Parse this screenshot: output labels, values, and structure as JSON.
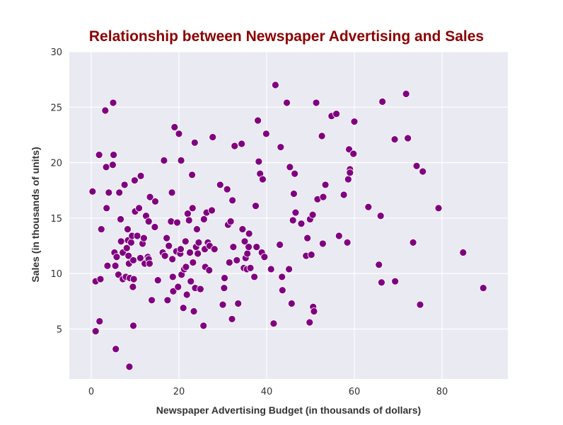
{
  "chart_data": {
    "type": "scatter",
    "title": "Relationship between Newspaper Advertising and Sales",
    "xlabel": "Newspaper Advertising Budget (in thousands of dollars)",
    "ylabel": "Sales (in thousands of units)",
    "xlim": [
      -5,
      95
    ],
    "ylim": [
      0.5,
      30
    ],
    "xticks": [
      0,
      20,
      40,
      60,
      80
    ],
    "yticks": [
      5,
      10,
      15,
      20,
      25,
      30
    ],
    "grid": true,
    "background": "#eaeaf2",
    "grid_color": "#ffffff",
    "point_color": "#800080",
    "title_color": "#8b0000",
    "points": [
      [
        0.3,
        17.4
      ],
      [
        1,
        9.3
      ],
      [
        1,
        4.8
      ],
      [
        1.8,
        20.7
      ],
      [
        1.9,
        5.7
      ],
      [
        2.1,
        9.5
      ],
      [
        2.3,
        14.0
      ],
      [
        3.2,
        24.7
      ],
      [
        3.4,
        19.6
      ],
      [
        3.5,
        15.9
      ],
      [
        3.7,
        10.7
      ],
      [
        4.0,
        17.3
      ],
      [
        4.9,
        19.8
      ],
      [
        5.0,
        25.4
      ],
      [
        5.1,
        20.7
      ],
      [
        5.3,
        11.9
      ],
      [
        5.5,
        10.7
      ],
      [
        5.6,
        3.2
      ],
      [
        5.8,
        11.5
      ],
      [
        6.2,
        9.9
      ],
      [
        6.4,
        17.3
      ],
      [
        6.7,
        14.9
      ],
      [
        6.8,
        12.9
      ],
      [
        7.2,
        11.9
      ],
      [
        7.2,
        9.5
      ],
      [
        7.6,
        18.0
      ],
      [
        7.9,
        9.7
      ],
      [
        8.1,
        12.3
      ],
      [
        8.3,
        14.0
      ],
      [
        8.4,
        13.0
      ],
      [
        8.5,
        11.6
      ],
      [
        8.6,
        10.9
      ],
      [
        8.7,
        1.6
      ],
      [
        8.8,
        9.6
      ],
      [
        9.1,
        12.8
      ],
      [
        9.3,
        13.4
      ],
      [
        9.5,
        8.8
      ],
      [
        9.6,
        11.2
      ],
      [
        9.6,
        5.3
      ],
      [
        9.7,
        9.5
      ],
      [
        9.9,
        18.4
      ],
      [
        10.0,
        15.6
      ],
      [
        10.5,
        13.4
      ],
      [
        10.9,
        15.9
      ],
      [
        11.2,
        11.4
      ],
      [
        11.3,
        18.8
      ],
      [
        11.7,
        12.7
      ],
      [
        12.0,
        13.2
      ],
      [
        12.2,
        10.9
      ],
      [
        12.5,
        15.2
      ],
      [
        12.9,
        11.5
      ],
      [
        13.1,
        14.7
      ],
      [
        13.1,
        11.3
      ],
      [
        13.3,
        10.9
      ],
      [
        13.4,
        16.9
      ],
      [
        13.8,
        7.6
      ],
      [
        14.5,
        14.2
      ],
      [
        14.6,
        16.5
      ],
      [
        15.2,
        9.4
      ],
      [
        16.3,
        11.9
      ],
      [
        16.6,
        20.2
      ],
      [
        16.8,
        11.6
      ],
      [
        17.2,
        13.2
      ],
      [
        17.4,
        7.6
      ],
      [
        17.7,
        12.5
      ],
      [
        18.2,
        14.7
      ],
      [
        18.4,
        17.3
      ],
      [
        18.5,
        11.3
      ],
      [
        18.6,
        9.7
      ],
      [
        18.7,
        8.4
      ],
      [
        19.0,
        23.2
      ],
      [
        19.4,
        12.0
      ],
      [
        19.6,
        14.6
      ],
      [
        19.8,
        8.8
      ],
      [
        20.0,
        22.6
      ],
      [
        20.3,
        11.8
      ],
      [
        20.4,
        12.2
      ],
      [
        20.5,
        20.2
      ],
      [
        20.6,
        9.9
      ],
      [
        21.0,
        6.9
      ],
      [
        21.2,
        10.4
      ],
      [
        21.5,
        12.9
      ],
      [
        21.6,
        10.6
      ],
      [
        21.8,
        8.1
      ],
      [
        22.0,
        15.4
      ],
      [
        22.3,
        14.8
      ],
      [
        22.5,
        11.9
      ],
      [
        22.7,
        9.3
      ],
      [
        23.0,
        18.9
      ],
      [
        23.1,
        15.9
      ],
      [
        23.2,
        11.0
      ],
      [
        23.4,
        6.6
      ],
      [
        23.6,
        21.8
      ],
      [
        23.7,
        8.7
      ],
      [
        23.9,
        12.4
      ],
      [
        24.1,
        14.0
      ],
      [
        24.3,
        11.8
      ],
      [
        24.5,
        12.8
      ],
      [
        24.9,
        8.6
      ],
      [
        25.6,
        5.3
      ],
      [
        25.7,
        14.9
      ],
      [
        25.9,
        12.2
      ],
      [
        26.0,
        10.6
      ],
      [
        26.3,
        15.5
      ],
      [
        26.6,
        12.8
      ],
      [
        26.9,
        10.3
      ],
      [
        27.0,
        12.5
      ],
      [
        27.5,
        15.7
      ],
      [
        27.7,
        22.3
      ],
      [
        28.1,
        12.2
      ],
      [
        29.4,
        18.0
      ],
      [
        30.0,
        7.2
      ],
      [
        30.3,
        8.7
      ],
      [
        30.4,
        9.6
      ],
      [
        31.0,
        17.6
      ],
      [
        31.2,
        14.4
      ],
      [
        31.5,
        11.0
      ],
      [
        31.8,
        14.7
      ],
      [
        32.1,
        5.9
      ],
      [
        32.2,
        16.6
      ],
      [
        32.4,
        12.4
      ],
      [
        32.7,
        21.5
      ],
      [
        33.2,
        11.2
      ],
      [
        33.5,
        7.3
      ],
      [
        34.3,
        21.7
      ],
      [
        34.5,
        14.0
      ],
      [
        34.8,
        10.5
      ],
      [
        35.0,
        12.9
      ],
      [
        35.2,
        11.4
      ],
      [
        35.5,
        10.4
      ],
      [
        35.6,
        11.8
      ],
      [
        35.9,
        12.4
      ],
      [
        36.0,
        13.6
      ],
      [
        36.3,
        10.5
      ],
      [
        37.2,
        9.7
      ],
      [
        37.5,
        16.1
      ],
      [
        37.7,
        12.4
      ],
      [
        38.0,
        23.8
      ],
      [
        38.2,
        20.1
      ],
      [
        38.5,
        19.0
      ],
      [
        38.9,
        11.9
      ],
      [
        39.1,
        18.5
      ],
      [
        39.5,
        11.5
      ],
      [
        39.9,
        22.6
      ],
      [
        41.0,
        10.4
      ],
      [
        41.6,
        5.5
      ],
      [
        42.0,
        27.0
      ],
      [
        43.0,
        12.6
      ],
      [
        43.2,
        21.4
      ],
      [
        43.5,
        9.7
      ],
      [
        43.6,
        8.5
      ],
      [
        44.6,
        25.4
      ],
      [
        45.1,
        10.4
      ],
      [
        45.3,
        19.6
      ],
      [
        45.7,
        7.3
      ],
      [
        46.0,
        14.8
      ],
      [
        46.2,
        17.2
      ],
      [
        46.4,
        19.0
      ],
      [
        46.6,
        15.5
      ],
      [
        47.9,
        14.5
      ],
      [
        49.0,
        11.6
      ],
      [
        49.3,
        13.2
      ],
      [
        49.8,
        5.6
      ],
      [
        49.9,
        14.9
      ],
      [
        50.2,
        11.7
      ],
      [
        50.5,
        15.3
      ],
      [
        50.6,
        7.0
      ],
      [
        50.8,
        6.6
      ],
      [
        51.3,
        25.4
      ],
      [
        51.6,
        16.7
      ],
      [
        52.6,
        22.4
      ],
      [
        52.8,
        12.7
      ],
      [
        52.9,
        16.9
      ],
      [
        53.4,
        18.0
      ],
      [
        54.8,
        24.2
      ],
      [
        55.9,
        24.4
      ],
      [
        56.5,
        13.4
      ],
      [
        57.6,
        17.1
      ],
      [
        58.4,
        12.8
      ],
      [
        58.6,
        18.5
      ],
      [
        58.8,
        21.2
      ],
      [
        59.0,
        19.4
      ],
      [
        59.0,
        19.1
      ],
      [
        59.8,
        20.8
      ],
      [
        60.0,
        23.7
      ],
      [
        63.2,
        16.0
      ],
      [
        65.6,
        10.8
      ],
      [
        66.0,
        15.2
      ],
      [
        66.2,
        9.2
      ],
      [
        66.4,
        25.5
      ],
      [
        69.2,
        22.1
      ],
      [
        69.3,
        9.3
      ],
      [
        71.8,
        26.2
      ],
      [
        72.2,
        22.2
      ],
      [
        73.4,
        12.8
      ],
      [
        74.2,
        19.7
      ],
      [
        75.0,
        7.2
      ],
      [
        75.6,
        19.2
      ],
      [
        79.2,
        15.9
      ],
      [
        84.8,
        11.9
      ],
      [
        89.4,
        8.7
      ]
    ]
  }
}
